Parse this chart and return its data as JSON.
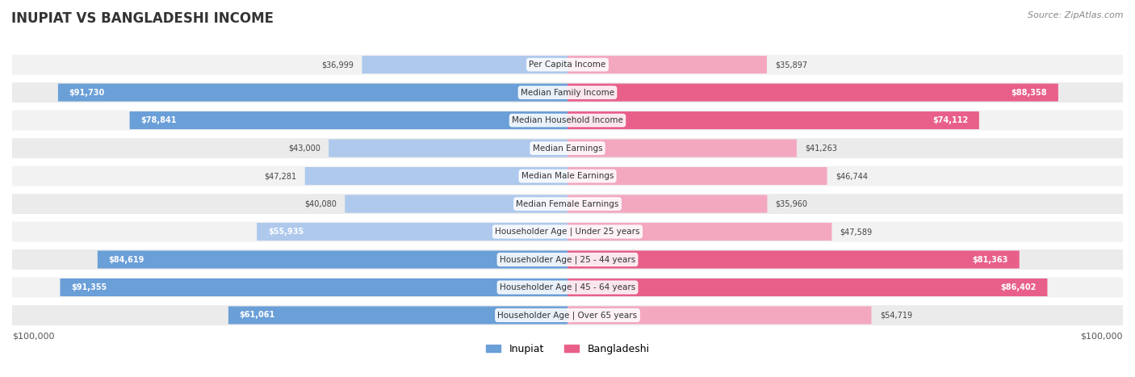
{
  "title": "INUPIAT VS BANGLADESHI INCOME",
  "source": "Source: ZipAtlas.com",
  "max_value": 100000,
  "categories": [
    "Per Capita Income",
    "Median Family Income",
    "Median Household Income",
    "Median Earnings",
    "Median Male Earnings",
    "Median Female Earnings",
    "Householder Age | Under 25 years",
    "Householder Age | 25 - 44 years",
    "Householder Age | 45 - 64 years",
    "Householder Age | Over 65 years"
  ],
  "inupiat_values": [
    36999,
    91730,
    78841,
    43000,
    47281,
    40080,
    55935,
    84619,
    91355,
    61061
  ],
  "bangladeshi_values": [
    35897,
    88358,
    74112,
    41263,
    46744,
    35960,
    47589,
    81363,
    86402,
    54719
  ],
  "inupiat_color_full": "#6a9fd8",
  "inupiat_color_light": "#aec9ec",
  "bangladeshi_color_full": "#e8608a",
  "bangladeshi_color_light": "#f4a8c0",
  "label_color_dark": "#555555",
  "label_color_white": "#ffffff",
  "row_bg_color": "#f0f0f0",
  "row_bg_alt": "#e8e8e8",
  "background_color": "#ffffff",
  "legend_inupiat": "Inupiat",
  "legend_bangladeshi": "Bangladeshi"
}
